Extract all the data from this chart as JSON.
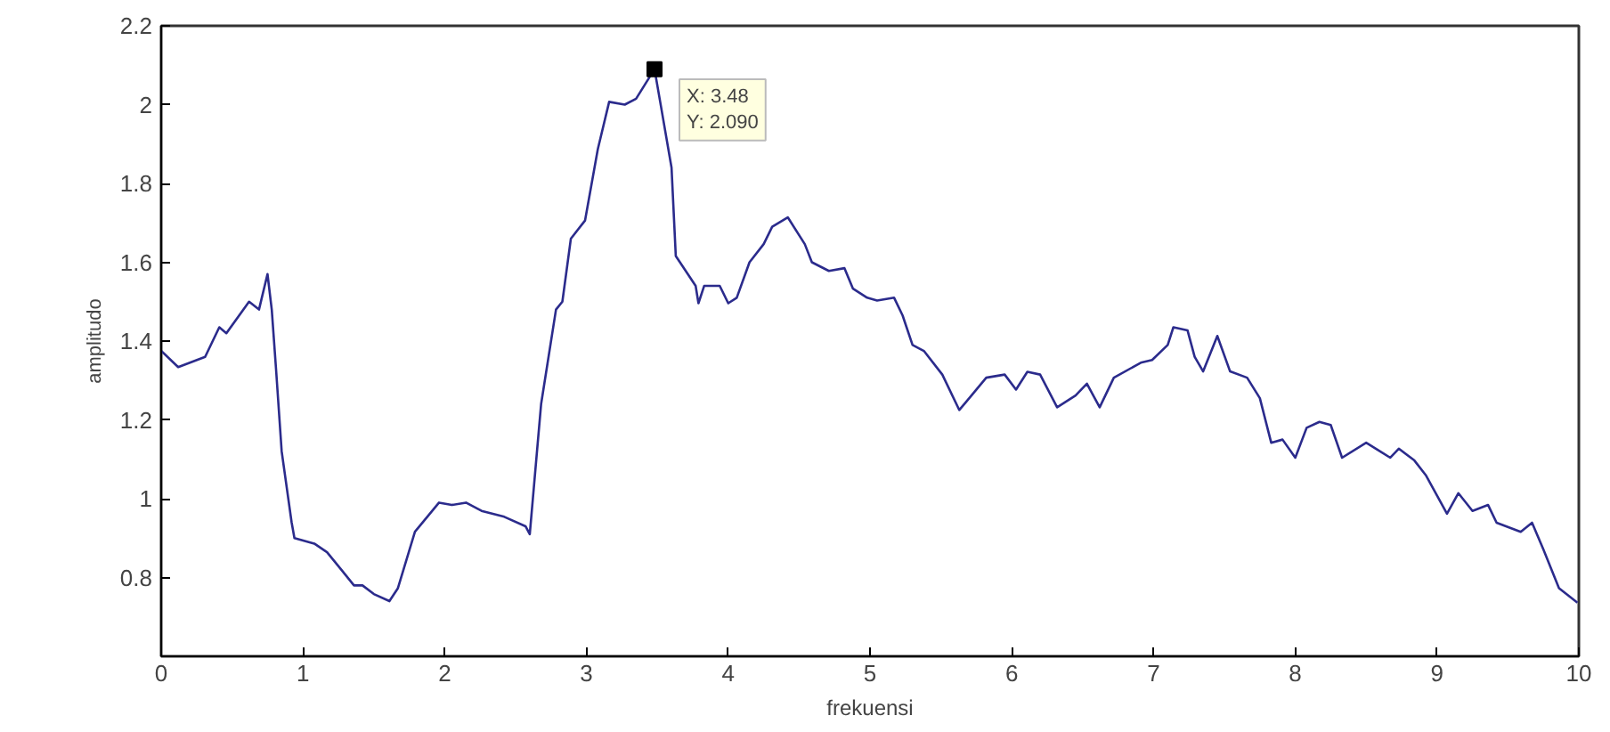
{
  "chart_data": {
    "type": "line",
    "xlabel": "frekuensi",
    "ylabel": "amplitudo",
    "xlim": [
      0,
      10
    ],
    "xticks": [
      0,
      1,
      2,
      3,
      4,
      5,
      6,
      7,
      8,
      9,
      10
    ],
    "ylim": [
      0.6,
      2.2
    ],
    "yticks": [
      0.8,
      1,
      1.2,
      1.4,
      1.6,
      1.8,
      2,
      2.2
    ],
    "annotations": [
      {
        "text": "X: 3.48\nY: 2.090",
        "x": 3.48,
        "y": 2.09
      }
    ],
    "series": [
      {
        "color": "#2b2b8c",
        "x": [
          0,
          0.12,
          0.31,
          0.41,
          0.46,
          0.62,
          0.69,
          0.75,
          0.78,
          0.81,
          0.85,
          0.92,
          0.94,
          1.08,
          1.17,
          1.27,
          1.36,
          1.42,
          1.5,
          1.61,
          1.67,
          1.79,
          1.96,
          2.05,
          2.15,
          2.26,
          2.42,
          2.57,
          2.6,
          2.68,
          2.785,
          2.83,
          2.89,
          2.99,
          3.08,
          3.16,
          3.27,
          3.35,
          3.48,
          3.52,
          3.6,
          3.63,
          3.77,
          3.79,
          3.83,
          3.94,
          4.0,
          4.06,
          4.15,
          4.25,
          4.31,
          4.42,
          4.54,
          4.59,
          4.71,
          4.82,
          4.88,
          4.98,
          5.05,
          5.17,
          5.23,
          5.3,
          5.38,
          5.51,
          5.63,
          5.7,
          5.82,
          5.95,
          6.03,
          6.11,
          6.2,
          6.32,
          6.45,
          6.53,
          6.62,
          6.72,
          6.91,
          6.99,
          7.1,
          7.14,
          7.24,
          7.29,
          7.35,
          7.45,
          7.54,
          7.66,
          7.75,
          7.83,
          7.91,
          8.0,
          8.08,
          8.17,
          8.25,
          8.33,
          8.5,
          8.67,
          8.73,
          8.84,
          8.92,
          9.07,
          9.15,
          9.25,
          9.36,
          9.42,
          9.59,
          9.67,
          9.75,
          9.86,
          9.99
        ],
        "values": [
          1.375,
          1.334,
          1.36,
          1.435,
          1.42,
          1.5,
          1.48,
          1.57,
          1.48,
          1.33,
          1.12,
          0.94,
          0.9,
          0.886,
          0.864,
          0.82,
          0.78,
          0.78,
          0.758,
          0.74,
          0.773,
          0.916,
          0.99,
          0.984,
          0.99,
          0.969,
          0.954,
          0.93,
          0.91,
          1.24,
          1.48,
          1.5,
          1.66,
          1.706,
          1.887,
          2.007,
          2.0,
          2.015,
          2.09,
          2.007,
          1.84,
          1.616,
          1.54,
          1.496,
          1.54,
          1.54,
          1.496,
          1.51,
          1.6,
          1.646,
          1.69,
          1.714,
          1.646,
          1.6,
          1.578,
          1.585,
          1.533,
          1.51,
          1.503,
          1.51,
          1.465,
          1.39,
          1.375,
          1.315,
          1.225,
          1.255,
          1.307,
          1.315,
          1.277,
          1.322,
          1.315,
          1.232,
          1.262,
          1.292,
          1.232,
          1.307,
          1.345,
          1.352,
          1.39,
          1.435,
          1.427,
          1.36,
          1.323,
          1.413,
          1.323,
          1.307,
          1.255,
          1.142,
          1.15,
          1.104,
          1.18,
          1.195,
          1.187,
          1.104,
          1.142,
          1.104,
          1.127,
          1.097,
          1.06,
          0.962,
          1.014,
          0.969,
          0.984,
          0.939,
          0.916,
          0.939,
          0.871,
          0.773,
          0.736
        ]
      }
    ]
  }
}
